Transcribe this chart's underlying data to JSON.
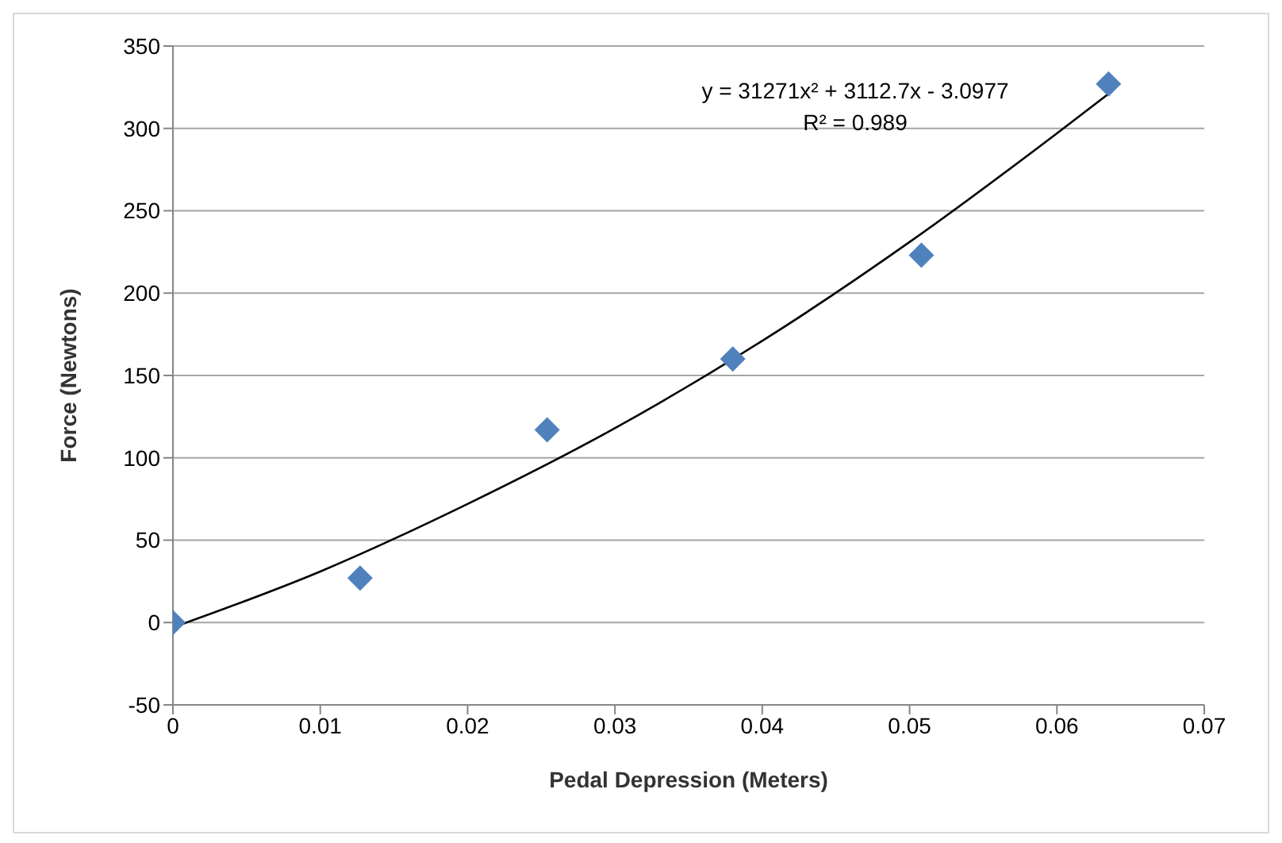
{
  "chart_data": {
    "type": "scatter",
    "xlabel": "Pedal Depression (Meters)",
    "ylabel": "Force (Newtons)",
    "annotations": [
      "y = 31271x² + 3112.7x - 3.0977",
      "R² = 0.989"
    ],
    "xlim": [
      0,
      0.07
    ],
    "xticks": [
      0,
      0.01,
      0.02,
      0.03,
      0.04,
      0.05,
      0.06,
      0.07
    ],
    "ylim": [
      -50,
      350
    ],
    "yticks": [
      -50,
      0,
      50,
      100,
      150,
      200,
      250,
      300,
      350
    ],
    "grid": "y",
    "marker": "diamond",
    "series": [
      {
        "color": "#4f81bd",
        "x": [
          0,
          0.0127,
          0.0254,
          0.038,
          0.0508,
          0.0635
        ],
        "values": [
          0,
          27,
          117,
          160,
          223,
          327
        ]
      },
      {
        "type": "line",
        "color": "#000000",
        "marker": "none",
        "x": [
          0,
          0.01,
          0.02,
          0.03,
          0.04,
          0.05,
          0.06,
          0.0635
        ],
        "values": [
          -3,
          31,
          72,
          118,
          171,
          231,
          297,
          321
        ]
      }
    ]
  }
}
